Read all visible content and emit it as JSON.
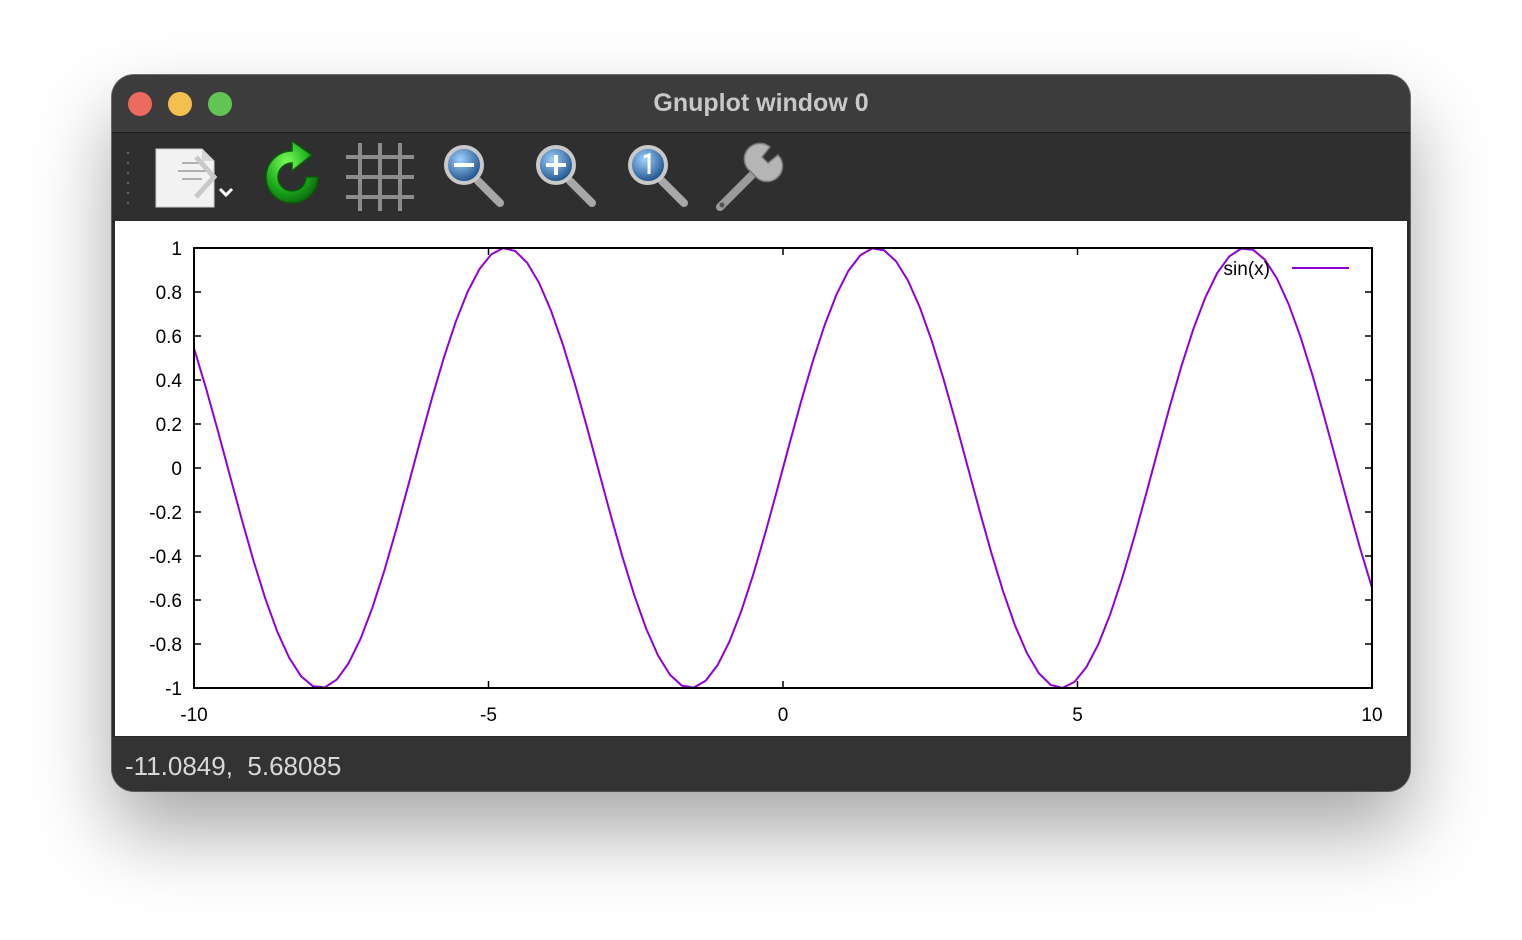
{
  "window": {
    "title": "Gnuplot window 0"
  },
  "toolbar": {
    "items": [
      {
        "name": "export",
        "icon": "export-document-icon"
      },
      {
        "name": "replot",
        "icon": "refresh-icon"
      },
      {
        "name": "grid",
        "icon": "grid-icon"
      },
      {
        "name": "zoom-previous",
        "icon": "zoom-out-icon"
      },
      {
        "name": "zoom-next",
        "icon": "zoom-in-icon"
      },
      {
        "name": "autoscale",
        "icon": "zoom-reset-icon"
      },
      {
        "name": "settings",
        "icon": "wrench-icon"
      }
    ]
  },
  "status": {
    "coordinates": "-11.0849,  5.68085"
  },
  "colors": {
    "series": "#9400d3",
    "titlebar": "#3c3c3c",
    "toolbar": "#2f2f2f",
    "statusbar": "#333333"
  },
  "chart_data": {
    "type": "line",
    "title": "",
    "xlabel": "",
    "ylabel": "",
    "xlim": [
      -10,
      10
    ],
    "ylim": [
      -1,
      1
    ],
    "x_ticks": [
      "-10",
      "-5",
      "0",
      "5",
      "10"
    ],
    "y_ticks": [
      "1",
      "0.8",
      "0.6",
      "0.4",
      "0.2",
      "0",
      "-0.2",
      "-0.4",
      "-0.6",
      "-0.8",
      "-1"
    ],
    "grid": false,
    "legend_position": "top-right",
    "series": [
      {
        "name": "sin(x)",
        "function": "sin(x)",
        "samples": 100
      }
    ]
  }
}
